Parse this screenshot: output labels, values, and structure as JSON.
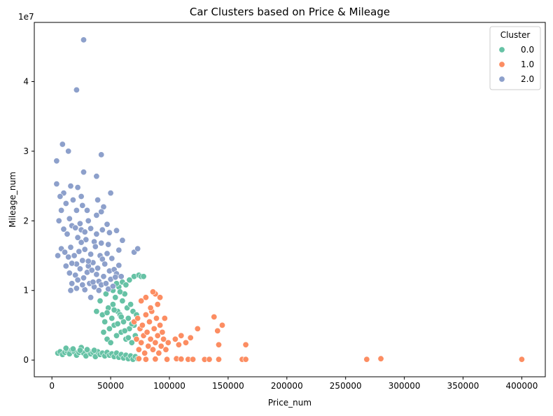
{
  "chart_data": {
    "type": "scatter",
    "title": "Car Clusters based on Price & Mileage",
    "xlabel": "Price_num",
    "ylabel": "Mileage_num",
    "y_scale_label": "1e7",
    "xlim": [
      -15000,
      420000
    ],
    "ylim": [
      -2400000,
      48500000
    ],
    "x_ticks": [
      0,
      50000,
      100000,
      150000,
      200000,
      250000,
      300000,
      350000,
      400000
    ],
    "x_tick_labels": [
      "0",
      "50000",
      "100000",
      "150000",
      "200000",
      "250000",
      "300000",
      "350000",
      "400000"
    ],
    "y_ticks": [
      0,
      10000000,
      20000000,
      30000000,
      40000000
    ],
    "y_tick_labels": [
      "0",
      "1",
      "2",
      "3",
      "4"
    ],
    "grid": false,
    "legend": {
      "title": "Cluster",
      "position": "top-right"
    },
    "series": [
      {
        "name": "0.0",
        "color": "#66c2a5",
        "points": [
          [
            5000,
            1000000
          ],
          [
            7000,
            1200000
          ],
          [
            9000,
            800000
          ],
          [
            11000,
            1100000
          ],
          [
            13000,
            1300000
          ],
          [
            15000,
            900000
          ],
          [
            17000,
            1500000
          ],
          [
            19000,
            1200000
          ],
          [
            21000,
            700000
          ],
          [
            23000,
            1100000
          ],
          [
            25000,
            1800000
          ],
          [
            27000,
            1000000
          ],
          [
            29000,
            600000
          ],
          [
            31000,
            1300000
          ],
          [
            33000,
            900000
          ],
          [
            35000,
            1100000
          ],
          [
            37000,
            500000
          ],
          [
            39000,
            1200000
          ],
          [
            41000,
            800000
          ],
          [
            43000,
            1000000
          ],
          [
            45000,
            600000
          ],
          [
            47000,
            1100000
          ],
          [
            49000,
            700000
          ],
          [
            51000,
            900000
          ],
          [
            53000,
            500000
          ],
          [
            55000,
            1000000
          ],
          [
            57000,
            400000
          ],
          [
            59000,
            800000
          ],
          [
            61000,
            300000
          ],
          [
            63000,
            700000
          ],
          [
            65000,
            200000
          ],
          [
            67000,
            600000
          ],
          [
            69000,
            100000
          ],
          [
            71000,
            500000
          ],
          [
            73000,
            200000
          ],
          [
            12000,
            1700000
          ],
          [
            18000,
            1600000
          ],
          [
            24000,
            1400000
          ],
          [
            30000,
            1500000
          ],
          [
            36000,
            1400000
          ],
          [
            38000,
            7000000
          ],
          [
            41000,
            8500000
          ],
          [
            43000,
            6500000
          ],
          [
            45000,
            5500000
          ],
          [
            46000,
            9500000
          ],
          [
            48000,
            7500000
          ],
          [
            49000,
            4500000
          ],
          [
            50000,
            10200000
          ],
          [
            51000,
            6000000
          ],
          [
            52000,
            8000000
          ],
          [
            53000,
            5000000
          ],
          [
            54000,
            9000000
          ],
          [
            55000,
            3500000
          ],
          [
            56000,
            7000000
          ],
          [
            57000,
            10500000
          ],
          [
            58000,
            6500000
          ],
          [
            59000,
            4000000
          ],
          [
            60000,
            8500000
          ],
          [
            61000,
            5500000
          ],
          [
            62000,
            9500000
          ],
          [
            63000,
            3000000
          ],
          [
            64000,
            7500000
          ],
          [
            65000,
            6000000
          ],
          [
            66000,
            4500000
          ],
          [
            67000,
            8000000
          ],
          [
            68000,
            2500000
          ],
          [
            69000,
            7000000
          ],
          [
            70000,
            5000000
          ],
          [
            71000,
            3500000
          ],
          [
            72000,
            6500000
          ],
          [
            44000,
            4000000
          ],
          [
            47000,
            3000000
          ],
          [
            50000,
            2500000
          ],
          [
            53000,
            7200000
          ],
          [
            56000,
            5200000
          ],
          [
            59000,
            6200000
          ],
          [
            62000,
            4200000
          ],
          [
            65000,
            3200000
          ],
          [
            68000,
            5200000
          ],
          [
            55000,
            11000000
          ],
          [
            60000,
            11200000
          ],
          [
            66000,
            11500000
          ],
          [
            70000,
            12000000
          ],
          [
            74000,
            12200000
          ],
          [
            76000,
            12000000
          ],
          [
            78000,
            12000000
          ],
          [
            58000,
            9800000
          ],
          [
            63000,
            10800000
          ],
          [
            47000,
            6800000
          ],
          [
            52000,
            10000000
          ]
        ]
      },
      {
        "name": "1.0",
        "color": "#fc8d62",
        "points": [
          [
            70000,
            5500000
          ],
          [
            72000,
            3000000
          ],
          [
            73000,
            6000000
          ],
          [
            74000,
            1500000
          ],
          [
            75000,
            4500000
          ],
          [
            76000,
            2500000
          ],
          [
            77000,
            5000000
          ],
          [
            78000,
            3500000
          ],
          [
            79000,
            1000000
          ],
          [
            80000,
            6500000
          ],
          [
            81000,
            4000000
          ],
          [
            82000,
            2000000
          ],
          [
            83000,
            5500000
          ],
          [
            84000,
            3000000
          ],
          [
            85000,
            7000000
          ],
          [
            86000,
            1500000
          ],
          [
            87000,
            4500000
          ],
          [
            88000,
            2500000
          ],
          [
            89000,
            6000000
          ],
          [
            90000,
            3500000
          ],
          [
            91000,
            1000000
          ],
          [
            92000,
            5000000
          ],
          [
            93000,
            2000000
          ],
          [
            94000,
            4000000
          ],
          [
            95000,
            3000000
          ],
          [
            97000,
            1500000
          ],
          [
            99000,
            2500000
          ],
          [
            76000,
            8500000
          ],
          [
            80000,
            9000000
          ],
          [
            84000,
            7500000
          ],
          [
            88000,
            9500000
          ],
          [
            92000,
            9000000
          ],
          [
            86000,
            9800000
          ],
          [
            90000,
            8000000
          ],
          [
            96000,
            6000000
          ],
          [
            74000,
            200000
          ],
          [
            80000,
            100000
          ],
          [
            88000,
            150000
          ],
          [
            98000,
            100000
          ],
          [
            106000,
            200000
          ],
          [
            110000,
            150000
          ],
          [
            116000,
            100000
          ],
          [
            120000,
            100000
          ],
          [
            130000,
            80000
          ],
          [
            134000,
            100000
          ],
          [
            142000,
            100000
          ],
          [
            162000,
            100000
          ],
          [
            165000,
            100000
          ],
          [
            105000,
            3000000
          ],
          [
            110000,
            3500000
          ],
          [
            114000,
            2500000
          ],
          [
            118000,
            3200000
          ],
          [
            124000,
            4500000
          ],
          [
            138000,
            6200000
          ],
          [
            141000,
            4200000
          ],
          [
            145000,
            5000000
          ],
          [
            142000,
            2200000
          ],
          [
            165000,
            2200000
          ],
          [
            108000,
            2200000
          ],
          [
            268000,
            100000
          ],
          [
            280000,
            200000
          ],
          [
            400000,
            100000
          ]
        ]
      },
      {
        "name": "2.0",
        "color": "#8da0cb",
        "points": [
          [
            27000,
            46000000
          ],
          [
            21000,
            38800000
          ],
          [
            9000,
            31000000
          ],
          [
            14000,
            30000000
          ],
          [
            42000,
            29500000
          ],
          [
            4000,
            28600000
          ],
          [
            27000,
            27000000
          ],
          [
            38000,
            26400000
          ],
          [
            4000,
            25300000
          ],
          [
            16000,
            25000000
          ],
          [
            22000,
            24800000
          ],
          [
            50000,
            24000000
          ],
          [
            10000,
            24000000
          ],
          [
            7000,
            23500000
          ],
          [
            25000,
            23500000
          ],
          [
            18000,
            23000000
          ],
          [
            39000,
            23000000
          ],
          [
            12000,
            22500000
          ],
          [
            26000,
            22200000
          ],
          [
            44000,
            22000000
          ],
          [
            30000,
            21500000
          ],
          [
            8000,
            21500000
          ],
          [
            21000,
            21500000
          ],
          [
            42000,
            21300000
          ],
          [
            38000,
            20800000
          ],
          [
            15000,
            20300000
          ],
          [
            31000,
            20000000
          ],
          [
            6000,
            20000000
          ],
          [
            47000,
            19500000
          ],
          [
            24000,
            19600000
          ],
          [
            10000,
            18800000
          ],
          [
            17000,
            19300000
          ],
          [
            20000,
            19000000
          ],
          [
            25000,
            18700000
          ],
          [
            28000,
            18400000
          ],
          [
            33000,
            18900000
          ],
          [
            38000,
            18100000
          ],
          [
            43000,
            18700000
          ],
          [
            49000,
            18300000
          ],
          [
            55000,
            18600000
          ],
          [
            13000,
            18100000
          ],
          [
            22000,
            17600000
          ],
          [
            29000,
            17300000
          ],
          [
            36000,
            17000000
          ],
          [
            42000,
            16800000
          ],
          [
            48000,
            16600000
          ],
          [
            60000,
            17200000
          ],
          [
            70000,
            15500000
          ],
          [
            73000,
            16000000
          ],
          [
            57000,
            15800000
          ],
          [
            5000,
            15000000
          ],
          [
            8000,
            16000000
          ],
          [
            11000,
            15500000
          ],
          [
            14000,
            14800000
          ],
          [
            16000,
            16200000
          ],
          [
            19000,
            15000000
          ],
          [
            21000,
            13800000
          ],
          [
            23000,
            15600000
          ],
          [
            26000,
            14300000
          ],
          [
            28000,
            15900000
          ],
          [
            31000,
            13500000
          ],
          [
            33000,
            15200000
          ],
          [
            35000,
            14000000
          ],
          [
            37000,
            16300000
          ],
          [
            39000,
            13200000
          ],
          [
            41000,
            15000000
          ],
          [
            43000,
            14500000
          ],
          [
            45000,
            13800000
          ],
          [
            47000,
            15300000
          ],
          [
            49000,
            12800000
          ],
          [
            51000,
            14600000
          ],
          [
            53000,
            13000000
          ],
          [
            55000,
            12400000
          ],
          [
            57000,
            13600000
          ],
          [
            59000,
            12000000
          ],
          [
            12000,
            13500000
          ],
          [
            15000,
            12500000
          ],
          [
            17000,
            13900000
          ],
          [
            20000,
            12200000
          ],
          [
            22000,
            11500000
          ],
          [
            24000,
            13100000
          ],
          [
            27000,
            11800000
          ],
          [
            30000,
            12600000
          ],
          [
            32000,
            11000000
          ],
          [
            34000,
            12900000
          ],
          [
            36000,
            10500000
          ],
          [
            38000,
            12300000
          ],
          [
            40000,
            11300000
          ],
          [
            42000,
            10800000
          ],
          [
            44000,
            12000000
          ],
          [
            46000,
            11000000
          ],
          [
            48000,
            10200000
          ],
          [
            50000,
            11600000
          ],
          [
            52000,
            10600000
          ],
          [
            54000,
            11900000
          ],
          [
            17000,
            11000000
          ],
          [
            16000,
            10000000
          ],
          [
            21000,
            10300000
          ],
          [
            28000,
            10100000
          ],
          [
            33000,
            9000000
          ],
          [
            40000,
            10000000
          ],
          [
            26000,
            10800000
          ],
          [
            35000,
            11200000
          ],
          [
            31000,
            14200000
          ],
          [
            25000,
            16900000
          ]
        ]
      }
    ]
  }
}
